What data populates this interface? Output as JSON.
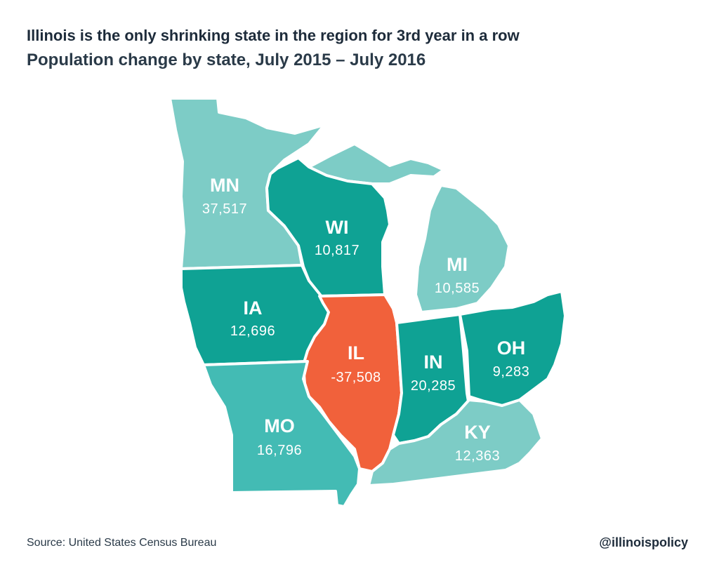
{
  "title": "Illinois is the only shrinking state in the region for 3rd year in a row",
  "subtitle": "Population change by state, July 2015 – July 2016",
  "source": "Source: United States Census Bureau",
  "handle": "@illinoispolicy",
  "colors": {
    "light_teal": "#7dccc6",
    "medium_teal": "#43bbb4",
    "dark_teal": "#0fa294",
    "illinois_orange": "#f1613b"
  },
  "states": [
    {
      "abbr": "MN",
      "value": "37,517",
      "color": "#7dccc6"
    },
    {
      "abbr": "WI",
      "value": "10,817",
      "color": "#0fa294"
    },
    {
      "abbr": "MI",
      "value": "10,585",
      "color": "#7dccc6"
    },
    {
      "abbr": "IA",
      "value": "12,696",
      "color": "#0fa294"
    },
    {
      "abbr": "IL",
      "value": "-37,508",
      "color": "#f1613b"
    },
    {
      "abbr": "IN",
      "value": "20,285",
      "color": "#0fa294"
    },
    {
      "abbr": "OH",
      "value": "9,283",
      "color": "#0fa294"
    },
    {
      "abbr": "MO",
      "value": "16,796",
      "color": "#43bbb4"
    },
    {
      "abbr": "KY",
      "value": "12,363",
      "color": "#7dccc6"
    }
  ]
}
